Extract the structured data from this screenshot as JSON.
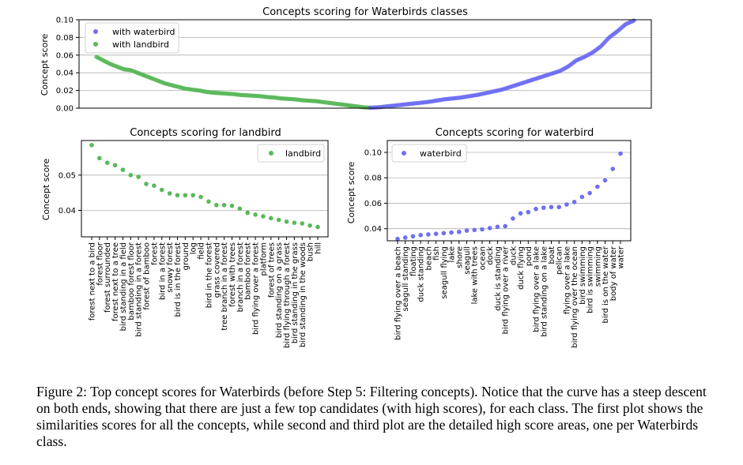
{
  "caption": "Figure 2: Top concept scores for Waterbirds (before Step 5: Filtering concepts). Notice that the curve has a steep descent on both ends, showing that there are just a few top candidates (with high scores), for each class. The first plot shows the similarities scores for all the concepts, while second and third plot are the detailed high score areas, one per Waterbirds class.",
  "colors": {
    "waterbird": "#6f6ff2",
    "landbird": "#5ab85a",
    "grid": "#b0b0b0",
    "axis": "#000000"
  },
  "chart_data": [
    {
      "type": "scatter",
      "title": "Concepts scoring for Waterbirds classes",
      "xlabel": "",
      "ylabel": "Concept score",
      "ylim": [
        0.0,
        0.1
      ],
      "yticks": [
        "0.00",
        "0.02",
        "0.04",
        "0.06",
        "0.08",
        "0.10"
      ],
      "grid": true,
      "legend": "top-left",
      "series": [
        {
          "name": "with landbird",
          "x_range": [
            0,
            189
          ],
          "values": [
            0.058,
            0.054,
            0.05,
            0.047,
            0.044,
            0.043,
            0.04,
            0.037,
            0.034,
            0.031,
            0.028,
            0.026,
            0.024,
            0.022,
            0.021,
            0.02,
            0.0185,
            0.0175,
            0.017,
            0.0165,
            0.016,
            0.015,
            0.0145,
            0.014,
            0.0135,
            0.0125,
            0.012,
            0.011,
            0.0105,
            0.01,
            0.009,
            0.0085,
            0.008,
            0.007,
            0.006,
            0.005,
            0.004,
            0.003,
            0.002,
            0.001,
            0.0005
          ]
        },
        {
          "name": "with waterbird",
          "x_range": [
            189,
            371
          ],
          "values": [
            0.0005,
            0.001,
            0.002,
            0.003,
            0.004,
            0.005,
            0.006,
            0.007,
            0.0085,
            0.01,
            0.011,
            0.012,
            0.0135,
            0.015,
            0.017,
            0.019,
            0.021,
            0.024,
            0.027,
            0.03,
            0.033,
            0.036,
            0.039,
            0.042,
            0.047,
            0.054,
            0.058,
            0.063,
            0.07,
            0.08,
            0.087,
            0.095,
            0.099
          ]
        }
      ]
    },
    {
      "type": "scatter",
      "title": "Concepts scoring for landbird",
      "xlabel": "",
      "ylabel": "Concept score",
      "yticks": [
        0.04,
        0.05
      ],
      "ylim": [
        0.0325,
        0.0598
      ],
      "grid": true,
      "legend": "top-right",
      "series": [
        {
          "name": "landbird"
        }
      ],
      "categories": [
        "forest next to a bird",
        "forest floor",
        "forest surrounded",
        "forest next to a tree",
        "bird standing in a field",
        "bamboo forest floor",
        "bird standing in a forest",
        "forest of bamboo",
        "forest",
        "bird in a forest",
        "snowy forest",
        "bird is in the forest",
        "ground",
        "log",
        "field",
        "bird in the forest",
        "grass covered",
        "tree branch in a forest",
        "forest with trees",
        "branch in a forest",
        "bamboo forest",
        "bird flying over a forest",
        "platform",
        "forest of trees",
        "bird standing on a grass",
        "bird flying through a forest",
        "bird standing in the grass",
        "bird standing in the woods",
        "bush",
        "hill"
      ],
      "values": [
        0.0585,
        0.0548,
        0.0535,
        0.0528,
        0.0515,
        0.05,
        0.0495,
        0.0475,
        0.047,
        0.0458,
        0.0448,
        0.0443,
        0.0443,
        0.0443,
        0.0438,
        0.0425,
        0.0415,
        0.0415,
        0.0413,
        0.0405,
        0.0393,
        0.0388,
        0.0383,
        0.0378,
        0.0373,
        0.0368,
        0.0365,
        0.0363,
        0.0357,
        0.0353
      ]
    },
    {
      "type": "scatter",
      "title": "Concepts scoring for waterbird",
      "xlabel": "",
      "ylabel": "Concept score",
      "yticks": [
        "0.04",
        "0.06",
        "0.08",
        "0.10"
      ],
      "ylim": [
        0.0305,
        0.1093
      ],
      "grid": true,
      "legend": "top-left",
      "series": [
        {
          "name": "waterbird"
        }
      ],
      "categories": [
        "bird flying over a beach",
        "seagull standing",
        "floating",
        "duck standing",
        "beach",
        "fish",
        "seagull flying",
        "lake",
        "shore",
        "seagull",
        "lake with trees",
        "ocean",
        "dock",
        "duck is standing",
        "bird flying over a river",
        "duck",
        "duck flying",
        "pond",
        "bird flying over a lake",
        "bird standing on a lake",
        "boat",
        "pelican",
        "flying over a lake",
        "bird flying over the ocean",
        "bird swimming",
        "bird is swimming",
        "swimming",
        "bird is on the water",
        "body of water",
        "water"
      ],
      "values": [
        0.032,
        0.033,
        0.034,
        0.035,
        0.0355,
        0.036,
        0.0365,
        0.037,
        0.0375,
        0.0385,
        0.039,
        0.0395,
        0.0405,
        0.0415,
        0.042,
        0.048,
        0.052,
        0.053,
        0.0555,
        0.0565,
        0.057,
        0.057,
        0.059,
        0.061,
        0.065,
        0.068,
        0.073,
        0.078,
        0.087,
        0.099
      ]
    }
  ]
}
